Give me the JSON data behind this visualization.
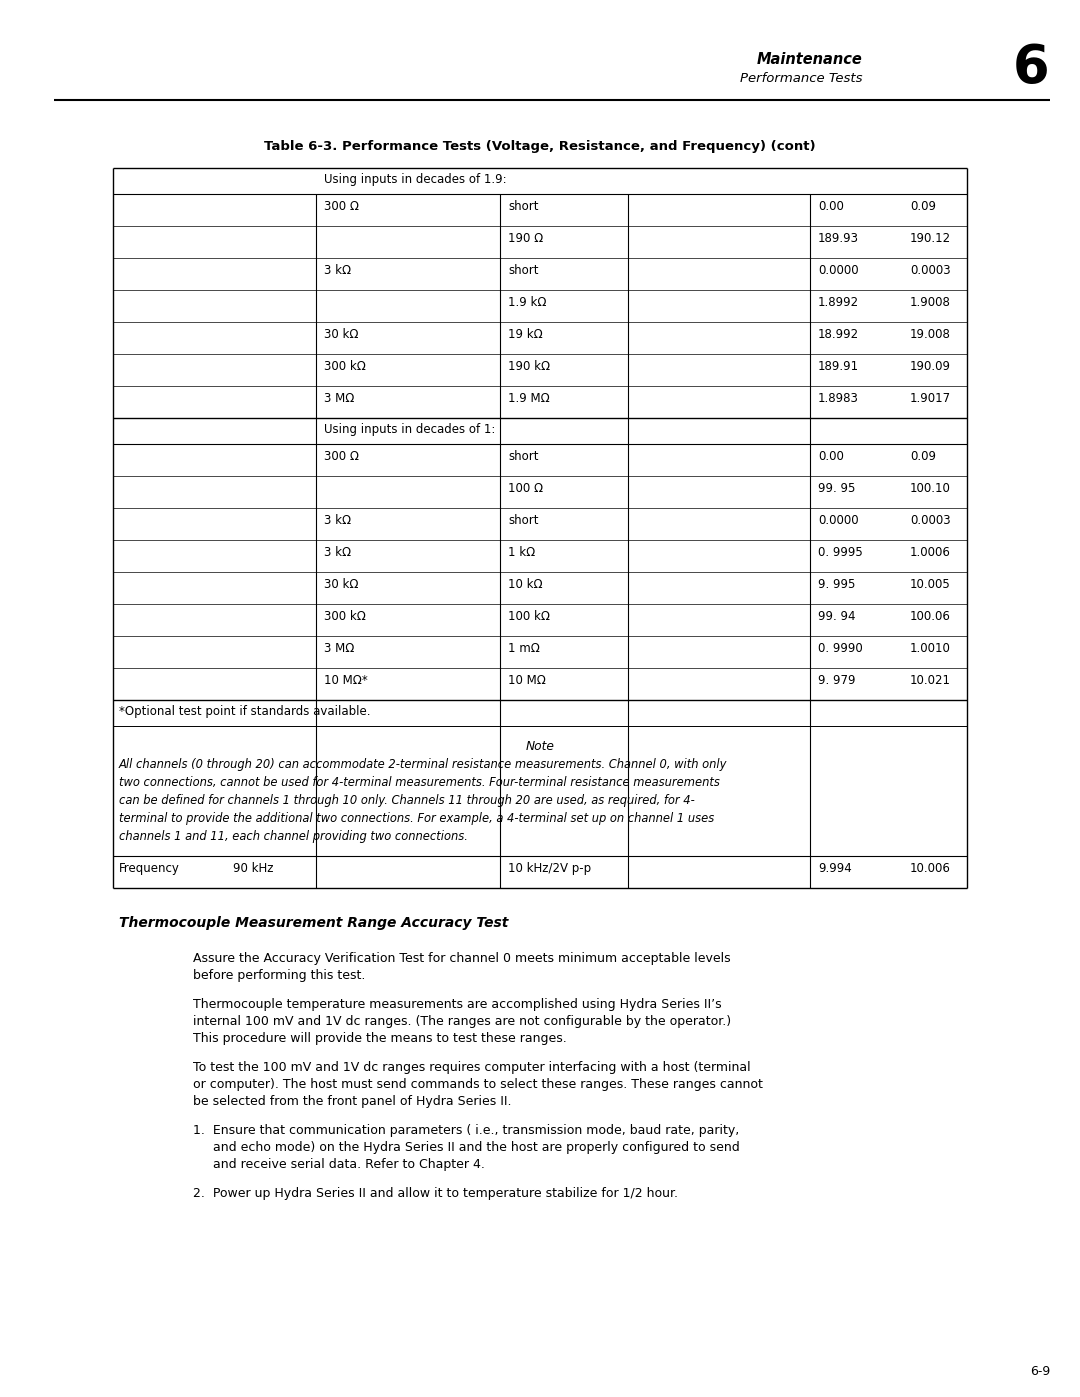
{
  "title_header_left": "Maintenance",
  "title_header_right": "Performance Tests",
  "chapter_number": "6",
  "table_title": "Table 6-3. Performance Tests (Voltage, Resistance, and Frequency) (cont)",
  "section1_header": "Using inputs in decades of 1.9:",
  "section1_rows": [
    [
      "300 Ω",
      "short",
      "",
      "0.00",
      "0.09"
    ],
    [
      "",
      "190 Ω",
      "",
      "189.93",
      "190.12"
    ],
    [
      "3 kΩ",
      "short",
      "",
      "0.0000",
      "0.0003"
    ],
    [
      "",
      "1.9 kΩ",
      "",
      "1.8992",
      "1.9008"
    ],
    [
      "30 kΩ",
      "19 kΩ",
      "",
      "18.992",
      "19.008"
    ],
    [
      "300 kΩ",
      "190 kΩ",
      "",
      "189.91",
      "190.09"
    ],
    [
      "3 MΩ",
      "1.9 MΩ",
      "",
      "1.8983",
      "1.9017"
    ]
  ],
  "section2_header": "Using inputs in decades of 1:",
  "section2_rows": [
    [
      "300 Ω",
      "short",
      "",
      "0.00",
      "0.09"
    ],
    [
      "",
      "100 Ω",
      "",
      "99. 95",
      "100.10"
    ],
    [
      "3 kΩ",
      "short",
      "",
      "0.0000",
      "0.0003"
    ],
    [
      "3 kΩ",
      "1 kΩ",
      "",
      "0. 9995",
      "1.0006"
    ],
    [
      "30 kΩ",
      "10 kΩ",
      "",
      "9. 995",
      "10.005"
    ],
    [
      "300 kΩ",
      "100 kΩ",
      "",
      "99. 94",
      "100.06"
    ],
    [
      "3 MΩ",
      "1 mΩ",
      "",
      "0. 9990",
      "1.0010"
    ],
    [
      "10 MΩ*",
      "10 MΩ",
      "",
      "9. 979",
      "10.021"
    ]
  ],
  "optional_note": "*Optional test point if standards available.",
  "note_label": "Note",
  "note_text": "All channels (0 through 20) can accommodate 2-terminal resistance measurements. Channel 0, with only\ntwo connections, cannot be used for 4-terminal measurements. Four-terminal resistance measurements\ncan be defined for channels 1 through 10 only. Channels 11 through 20 are used, as required, for 4-\nterminal to provide the additional two connections. For example, a 4-terminal set up on channel 1 uses\nchannels 1 and 11, each channel providing two connections.",
  "freq_row": [
    "Frequency",
    "90 kHz",
    "10 kHz/2V p-p",
    "",
    "9.994",
    "10.006"
  ],
  "tc_heading": "Thermocouple Measurement Range Accuracy Test",
  "para1": "Assure the Accuracy Verification Test for channel 0 meets minimum acceptable levels\nbefore performing this test.",
  "para2": "Thermocouple temperature measurements are accomplished using Hydra Series II’s\ninternal 100 mV and 1V dc ranges. (The ranges are not configurable by the operator.)\nThis procedure will provide the means to test these ranges.",
  "para3": "To test the 100 mV and 1V dc ranges requires computer interfacing with a host (terminal\nor computer). The host must send commands to select these ranges. These ranges cannot\nbe selected from the front panel of Hydra Series II.",
  "list_item1_a": "1.  Ensure that communication parameters ( i.e., transmission mode, baud rate, parity,",
  "list_item1_b": "     and echo mode) on the Hydra Series II and the host are properly configured to send",
  "list_item1_c": "     and receive serial data. Refer to Chapter 4.",
  "list_item2": "2.  Power up Hydra Series II and allow it to temperature stabilize for 1/2 hour.",
  "page_number": "6-9",
  "bg_color": "#ffffff"
}
